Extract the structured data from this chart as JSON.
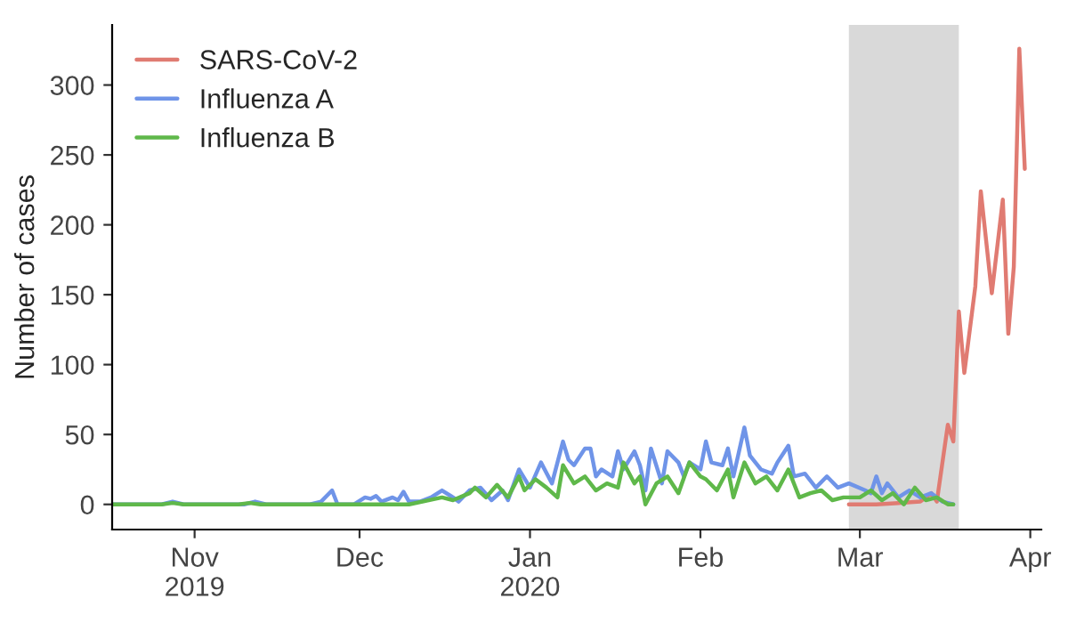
{
  "chart_data": {
    "type": "line",
    "ylabel": "Number of cases",
    "xlim": [
      "2019-10-17",
      "2020-04-03"
    ],
    "xticks": [
      {
        "value": "2019-11-01",
        "label": "Nov\n2019"
      },
      {
        "value": "2019-12-01",
        "label": "Dec"
      },
      {
        "value": "2020-01-01",
        "label": "Jan\n2020"
      },
      {
        "value": "2020-02-01",
        "label": "Feb"
      },
      {
        "value": "2020-03-01",
        "label": "Mar"
      },
      {
        "value": "2020-04-01",
        "label": "Apr"
      }
    ],
    "ylim": [
      -18,
      343
    ],
    "yticks": [
      0,
      50,
      100,
      150,
      200,
      250,
      300
    ],
    "grid": false,
    "legend": "top left",
    "marker": "none",
    "line_style": "solid",
    "bands": [
      {
        "axis": "x",
        "from": "2020-02-28",
        "to": "2020-03-19",
        "color": "#d9d9d9"
      }
    ],
    "series": [
      {
        "name": "SARS-CoV-2",
        "color": "#e07b72",
        "x": [
          "2020-02-28",
          "2020-03-04",
          "2020-03-08",
          "2020-03-12",
          "2020-03-14",
          "2020-03-15",
          "2020-03-17",
          "2020-03-18",
          "2020-03-19",
          "2020-03-20",
          "2020-03-22",
          "2020-03-23",
          "2020-03-25",
          "2020-03-27",
          "2020-03-28",
          "2020-03-29",
          "2020-03-30",
          "2020-03-31"
        ],
        "values": [
          0,
          0,
          1,
          2,
          8,
          2,
          57,
          45,
          138,
          94,
          156,
          224,
          151,
          218,
          122,
          170,
          326,
          240
        ]
      },
      {
        "name": "Influenza A",
        "color": "#6f94e8",
        "x": [
          "2019-10-17",
          "2019-10-26",
          "2019-10-28",
          "2019-10-30",
          "2019-11-10",
          "2019-11-12",
          "2019-11-14",
          "2019-11-22",
          "2019-11-24",
          "2019-11-26",
          "2019-11-27",
          "2019-11-30",
          "2019-12-02",
          "2019-12-03",
          "2019-12-04",
          "2019-12-05",
          "2019-12-07",
          "2019-12-08",
          "2019-12-09",
          "2019-12-10",
          "2019-12-12",
          "2019-12-14",
          "2019-12-16",
          "2019-12-18",
          "2019-12-19",
          "2019-12-21",
          "2019-12-23",
          "2019-12-25",
          "2019-12-27",
          "2019-12-28",
          "2019-12-30",
          "2020-01-01",
          "2020-01-03",
          "2020-01-05",
          "2020-01-06",
          "2020-01-07",
          "2020-01-08",
          "2020-01-09",
          "2020-01-11",
          "2020-01-12",
          "2020-01-13",
          "2020-01-14",
          "2020-01-16",
          "2020-01-17",
          "2020-01-18",
          "2020-01-20",
          "2020-01-21",
          "2020-01-22",
          "2020-01-23",
          "2020-01-25",
          "2020-01-26",
          "2020-01-28",
          "2020-01-29",
          "2020-01-30",
          "2020-02-01",
          "2020-02-02",
          "2020-02-03",
          "2020-02-05",
          "2020-02-06",
          "2020-02-07",
          "2020-02-09",
          "2020-02-10",
          "2020-02-12",
          "2020-02-14",
          "2020-02-15",
          "2020-02-17",
          "2020-02-18",
          "2020-02-20",
          "2020-02-22",
          "2020-02-24",
          "2020-02-26",
          "2020-02-28",
          "2020-03-02",
          "2020-03-03",
          "2020-03-04",
          "2020-03-05",
          "2020-03-06",
          "2020-03-08",
          "2020-03-10",
          "2020-03-12",
          "2020-03-14",
          "2020-03-16",
          "2020-03-18"
        ],
        "values": [
          0,
          0,
          2,
          0,
          0,
          2,
          0,
          0,
          2,
          10,
          0,
          0,
          5,
          4,
          6,
          2,
          5,
          3,
          9,
          2,
          2,
          5,
          10,
          5,
          2,
          10,
          12,
          3,
          10,
          3,
          25,
          12,
          30,
          15,
          30,
          45,
          32,
          28,
          40,
          40,
          20,
          25,
          20,
          38,
          25,
          38,
          28,
          10,
          40,
          15,
          38,
          30,
          20,
          30,
          25,
          45,
          30,
          28,
          40,
          20,
          55,
          35,
          25,
          22,
          30,
          42,
          20,
          22,
          12,
          20,
          12,
          15,
          10,
          8,
          20,
          8,
          15,
          5,
          10,
          5,
          8,
          2,
          0
        ]
      },
      {
        "name": "Influenza B",
        "color": "#5fb84a",
        "x": [
          "2019-10-17",
          "2019-10-26",
          "2019-10-28",
          "2019-10-30",
          "2019-11-09",
          "2019-11-11",
          "2019-11-13",
          "2019-12-10",
          "2019-12-16",
          "2019-12-18",
          "2019-12-21",
          "2019-12-22",
          "2019-12-24",
          "2019-12-26",
          "2019-12-28",
          "2019-12-30",
          "2019-12-31",
          "2020-01-02",
          "2020-01-04",
          "2020-01-06",
          "2020-01-07",
          "2020-01-09",
          "2020-01-11",
          "2020-01-13",
          "2020-01-15",
          "2020-01-17",
          "2020-01-18",
          "2020-01-20",
          "2020-01-21",
          "2020-01-22",
          "2020-01-24",
          "2020-01-26",
          "2020-01-28",
          "2020-01-30",
          "2020-02-01",
          "2020-02-02",
          "2020-02-04",
          "2020-02-06",
          "2020-02-07",
          "2020-02-09",
          "2020-02-11",
          "2020-02-13",
          "2020-02-15",
          "2020-02-17",
          "2020-02-19",
          "2020-02-21",
          "2020-02-23",
          "2020-02-25",
          "2020-02-27",
          "2020-03-01",
          "2020-03-03",
          "2020-03-05",
          "2020-03-07",
          "2020-03-09",
          "2020-03-11",
          "2020-03-13",
          "2020-03-15",
          "2020-03-17",
          "2020-03-18"
        ],
        "values": [
          0,
          0,
          1,
          0,
          0,
          1,
          0,
          0,
          5,
          3,
          8,
          12,
          5,
          14,
          5,
          20,
          10,
          18,
          12,
          5,
          28,
          15,
          20,
          10,
          15,
          12,
          30,
          15,
          20,
          0,
          15,
          20,
          8,
          30,
          20,
          18,
          10,
          25,
          5,
          30,
          15,
          20,
          10,
          25,
          5,
          8,
          10,
          3,
          5,
          5,
          10,
          3,
          8,
          0,
          12,
          3,
          5,
          0,
          0
        ]
      }
    ]
  }
}
